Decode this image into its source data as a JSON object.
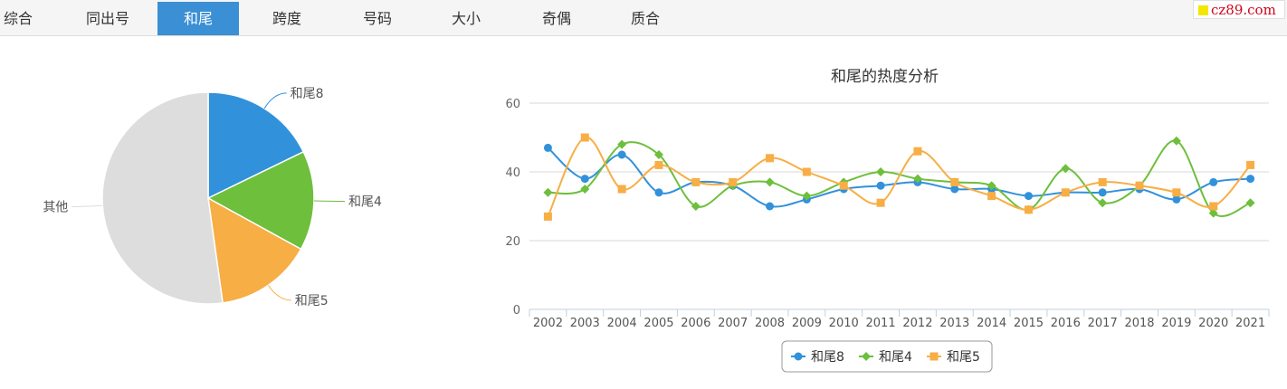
{
  "tabs": [
    {
      "label": "综合",
      "active": false
    },
    {
      "label": "同出号",
      "active": false
    },
    {
      "label": "和尾",
      "active": true
    },
    {
      "label": "跨度",
      "active": false
    },
    {
      "label": "号码",
      "active": false
    },
    {
      "label": "大小",
      "active": false
    },
    {
      "label": "奇偶",
      "active": false
    },
    {
      "label": "质合",
      "active": false
    }
  ],
  "brand": {
    "text": "cz89.com",
    "color": "#d0021b",
    "square_color": "#f5e600"
  },
  "chart_data": [
    {
      "type": "pie",
      "title": "",
      "slices": [
        {
          "label": "和尾8",
          "value": 17.8,
          "color": "#3291db"
        },
        {
          "label": "和尾4",
          "value": 15.2,
          "color": "#6dbf3c"
        },
        {
          "label": "和尾5",
          "value": 14.8,
          "color": "#f7ae45"
        },
        {
          "label": "其他",
          "value": 52.2,
          "color": "#dddddd"
        }
      ]
    },
    {
      "type": "line",
      "title": "和尾的热度分析",
      "xlabel": "",
      "ylabel": "",
      "ylim": [
        0,
        60
      ],
      "yticks": [
        0,
        20,
        40,
        60
      ],
      "grid": true,
      "legend": "bottom-center",
      "smooth": true,
      "x": [
        "2002",
        "2003",
        "2004",
        "2005",
        "2006",
        "2007",
        "2008",
        "2009",
        "2010",
        "2011",
        "2012",
        "2013",
        "2014",
        "2015",
        "2016",
        "2017",
        "2018",
        "2019",
        "2020",
        "2021"
      ],
      "series": [
        {
          "name": "和尾8",
          "color": "#3291db",
          "marker": "circle",
          "values": [
            47,
            38,
            45,
            34,
            37,
            36,
            30,
            32,
            35,
            36,
            37,
            35,
            35,
            33,
            34,
            34,
            35,
            32,
            37,
            38
          ]
        },
        {
          "name": "和尾4",
          "color": "#6dbf3c",
          "marker": "diamond",
          "values": [
            34,
            35,
            48,
            45,
            30,
            36,
            37,
            33,
            37,
            40,
            38,
            37,
            36,
            29,
            41,
            31,
            36,
            49,
            28,
            31
          ]
        },
        {
          "name": "和尾5",
          "color": "#f7ae45",
          "marker": "square",
          "values": [
            27,
            50,
            35,
            42,
            37,
            37,
            44,
            40,
            36,
            31,
            46,
            37,
            33,
            29,
            34,
            37,
            36,
            34,
            30,
            42
          ]
        }
      ]
    }
  ]
}
